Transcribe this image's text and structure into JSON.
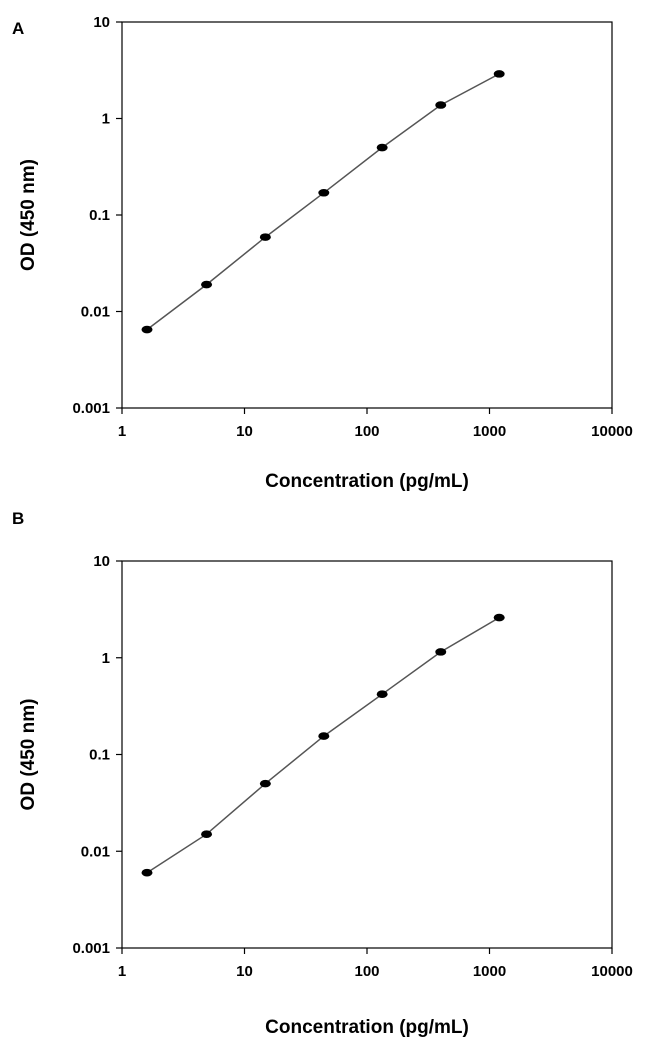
{
  "chart_data": [
    {
      "type": "line",
      "panel_label": "A",
      "xlabel": "Concentration (pg/mL)",
      "ylabel": "OD (450 nm)",
      "x_scale": "log",
      "y_scale": "log",
      "xlim": [
        1,
        10000
      ],
      "ylim": [
        0.001,
        10
      ],
      "x_ticks": [
        1,
        10,
        100,
        1000,
        10000
      ],
      "x_tick_labels": [
        "1",
        "10",
        "100",
        "1000",
        "10000"
      ],
      "y_ticks": [
        0.001,
        0.01,
        0.1,
        1,
        10
      ],
      "y_tick_labels": [
        "0.001",
        "0.01",
        "0.1",
        "1",
        "10"
      ],
      "grid": false,
      "series": [
        {
          "x": [
            1.6,
            4.9,
            14.8,
            44.4,
            133,
            400,
            1200
          ],
          "y": [
            0.0065,
            0.019,
            0.059,
            0.17,
            0.5,
            1.38,
            2.9
          ]
        }
      ]
    },
    {
      "type": "line",
      "panel_label": "B",
      "xlabel": "Concentration (pg/mL)",
      "ylabel": "OD (450 nm)",
      "x_scale": "log",
      "y_scale": "log",
      "xlim": [
        1,
        10000
      ],
      "ylim": [
        0.001,
        10
      ],
      "x_ticks": [
        1,
        10,
        100,
        1000,
        10000
      ],
      "x_tick_labels": [
        "1",
        "10",
        "100",
        "1000",
        "10000"
      ],
      "y_ticks": [
        0.001,
        0.01,
        0.1,
        1,
        10
      ],
      "y_tick_labels": [
        "0.001",
        "0.01",
        "0.1",
        "1",
        "10"
      ],
      "grid": false,
      "series": [
        {
          "x": [
            1.6,
            4.9,
            14.8,
            44.4,
            133,
            400,
            1200
          ],
          "y": [
            0.006,
            0.015,
            0.05,
            0.155,
            0.42,
            1.15,
            2.6
          ]
        }
      ]
    }
  ]
}
